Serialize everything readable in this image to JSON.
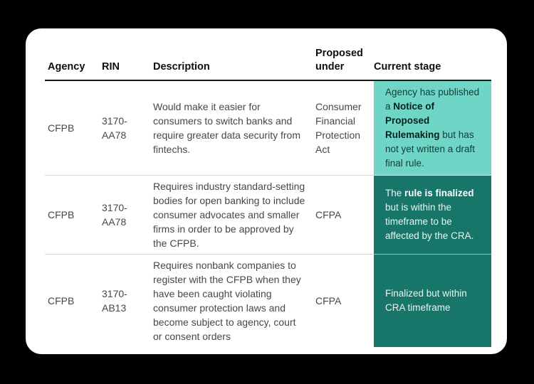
{
  "colors": {
    "page_background": "#000000",
    "card_background": "#ffffff",
    "header_rule": "#161616",
    "row_divider": "#d8d8d8"
  },
  "table": {
    "stage_colors": {
      "light": "#6fd5c7",
      "dark": "#177569"
    },
    "headers": {
      "agency": "Agency",
      "rin": "RIN",
      "description": "Description",
      "proposed_under": "Proposed under",
      "current_stage": "Current stage"
    },
    "rows": [
      {
        "agency": "CFPB",
        "rin": "3170-AA78",
        "description": "Would make it easier for consumers to switch banks and require greater data security from fintechs.",
        "proposed_under": "Consumer Financial Protection Act",
        "current_stage": {
          "variant": "light",
          "segments": [
            {
              "text": "Agency has published a ",
              "bold": false
            },
            {
              "text": "Notice of Proposed Rulemaking",
              "bold": true
            },
            {
              "text": " but has not yet written a draft final rule.",
              "bold": false
            }
          ]
        }
      },
      {
        "agency": "CFPB",
        "rin": "3170-AA78",
        "description": "Requires industry standard-setting bodies for open banking to include consumer advocates and smaller firms in order to be approved by the CFPB.",
        "proposed_under": "CFPA",
        "current_stage": {
          "variant": "dark",
          "segments": [
            {
              "text": "The ",
              "bold": false
            },
            {
              "text": "rule is finalized",
              "bold": true
            },
            {
              "text": " but is within the timeframe to be affected by the CRA.",
              "bold": false
            }
          ]
        }
      },
      {
        "agency": "CFPB",
        "rin": "3170-AB13",
        "description": "Requires nonbank companies to register with the CFPB when they have been caught violating consumer protection laws and become subject to agency, court or consent orders",
        "proposed_under": "CFPA",
        "current_stage": {
          "variant": "dark",
          "segments": [
            {
              "text": "Finalized but within CRA timeframe",
              "bold": false
            }
          ]
        }
      }
    ]
  },
  "chart_data": {
    "type": "table",
    "title": "",
    "columns": [
      "Agency",
      "RIN",
      "Description",
      "Proposed under",
      "Current stage"
    ],
    "rows": [
      [
        "CFPB",
        "3170-AA78",
        "Would make it easier for consumers to switch banks and require greater data security from fintechs.",
        "Consumer Financial Protection Act",
        "Agency has published a Notice of Proposed Rulemaking but has not yet written a draft final rule."
      ],
      [
        "CFPB",
        "3170-AA78",
        "Requires industry standard-setting bodies for open banking to include consumer advocates and smaller firms in order to be approved by the CFPB.",
        "CFPA",
        "The rule is finalized but is within the timeframe to be affected by the CRA."
      ],
      [
        "CFPB",
        "3170-AB13",
        "Requires nonbank companies to register with the CFPB when they have been caught violating consumer protection laws and become subject to agency, court or consent orders",
        "CFPA",
        "Finalized but within CRA timeframe"
      ]
    ],
    "layout_hints": {
      "stage_cell_backgrounds": [
        "#6fd5c7",
        "#177569",
        "#177569"
      ],
      "header_underline": true,
      "row_dividers": true
    }
  }
}
